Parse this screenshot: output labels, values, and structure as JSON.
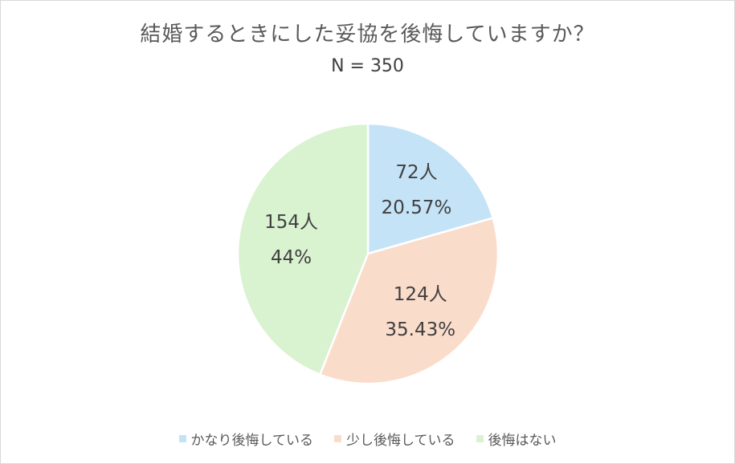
{
  "chart_data": {
    "type": "pie",
    "title": "結婚するときにした妥協を後悔していますか？",
    "subtitle": "N = 350",
    "categories": [
      "かなり後悔している",
      "少し後悔している",
      "後悔はない"
    ],
    "values": [
      72,
      124,
      154
    ],
    "percent_labels": [
      "20.57%",
      "35.43%",
      "44%"
    ],
    "count_labels": [
      "72人",
      "124人",
      "154人"
    ],
    "colors": [
      "#c5e3f6",
      "#fadccb",
      "#d9f2d0"
    ],
    "legend_position": "bottom",
    "start_angle_deg": 0,
    "direction": "clockwise"
  }
}
